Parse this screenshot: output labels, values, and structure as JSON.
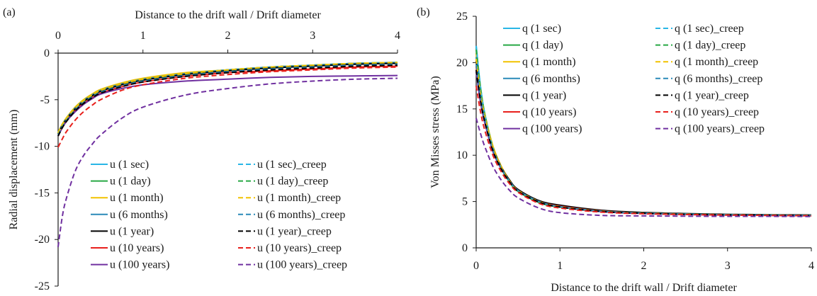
{
  "chart_data": [
    {
      "panel_label": "(a)",
      "type": "line",
      "xlabel": "Distance to the drift wall / Drift diameter",
      "xaxis_position": "top",
      "ylabel": "Radial displacement (mm)",
      "xlim": [
        0,
        4
      ],
      "ylim": [
        -25,
        0
      ],
      "xticks": [
        "0",
        "1",
        "2",
        "3",
        "4"
      ],
      "yticks": [
        "0",
        "-5",
        "-10",
        "-15",
        "-20",
        "-25"
      ],
      "grid": false,
      "legend_position": "bottom-center, two columns",
      "x": [
        0,
        0.05,
        0.1,
        0.2,
        0.3,
        0.4,
        0.5,
        0.75,
        1.0,
        1.5,
        2.0,
        2.5,
        3.0,
        3.5,
        4.0
      ],
      "series": [
        {
          "name": "u (1 sec)",
          "color": "#29b6e6",
          "dash": "solid",
          "values": [
            -8.6,
            -7.7,
            -7.0,
            -5.9,
            -5.1,
            -4.5,
            -4.0,
            -3.3,
            -2.8,
            -2.2,
            -1.8,
            -1.5,
            -1.3,
            -1.1,
            -1.0
          ]
        },
        {
          "name": "u (1 day)",
          "color": "#27a844",
          "dash": "solid",
          "values": [
            -8.6,
            -7.7,
            -7.0,
            -5.9,
            -5.1,
            -4.5,
            -4.0,
            -3.3,
            -2.8,
            -2.2,
            -1.8,
            -1.5,
            -1.3,
            -1.1,
            -1.0
          ]
        },
        {
          "name": "u (1 month)",
          "color": "#f2c200",
          "dash": "solid",
          "values": [
            -8.5,
            -7.6,
            -6.9,
            -5.8,
            -5.0,
            -4.4,
            -3.9,
            -3.2,
            -2.7,
            -2.1,
            -1.8,
            -1.5,
            -1.3,
            -1.1,
            -1.0
          ]
        },
        {
          "name": "u (6 months)",
          "color": "#2a8ab8",
          "dash": "solid",
          "values": [
            -8.6,
            -7.7,
            -7.0,
            -5.9,
            -5.1,
            -4.5,
            -4.0,
            -3.3,
            -2.8,
            -2.2,
            -1.8,
            -1.5,
            -1.3,
            -1.1,
            -1.0
          ]
        },
        {
          "name": "u (1 year)",
          "color": "#000000",
          "dash": "solid",
          "values": [
            -8.7,
            -7.8,
            -7.1,
            -6.0,
            -5.2,
            -4.6,
            -4.1,
            -3.4,
            -2.9,
            -2.3,
            -1.9,
            -1.6,
            -1.4,
            -1.2,
            -1.1
          ]
        },
        {
          "name": "u (10 years)",
          "color": "#e8201c",
          "dash": "solid",
          "values": [
            -8.9,
            -8.0,
            -7.3,
            -6.2,
            -5.4,
            -4.8,
            -4.3,
            -3.6,
            -3.1,
            -2.5,
            -2.1,
            -1.9,
            -1.7,
            -1.5,
            -1.4
          ]
        },
        {
          "name": "u (100 years)",
          "color": "#7030a0",
          "dash": "solid",
          "values": [
            -8.9,
            -8.0,
            -7.3,
            -6.3,
            -5.5,
            -4.9,
            -4.4,
            -3.8,
            -3.4,
            -3.0,
            -2.8,
            -2.6,
            -2.5,
            -2.45,
            -2.4
          ]
        },
        {
          "name": "u (1 sec)_creep",
          "color": "#29b6e6",
          "dash": "dashed",
          "values": [
            -8.6,
            -7.7,
            -7.0,
            -5.9,
            -5.1,
            -4.5,
            -4.0,
            -3.3,
            -2.8,
            -2.2,
            -1.8,
            -1.5,
            -1.3,
            -1.1,
            -1.0
          ]
        },
        {
          "name": "u (1 day)_creep",
          "color": "#27a844",
          "dash": "dashed",
          "values": [
            -8.6,
            -7.7,
            -7.0,
            -5.9,
            -5.1,
            -4.5,
            -4.0,
            -3.3,
            -2.8,
            -2.2,
            -1.8,
            -1.5,
            -1.3,
            -1.1,
            -1.0
          ]
        },
        {
          "name": "u (1 month)_creep",
          "color": "#f2c200",
          "dash": "dashed",
          "values": [
            -8.6,
            -7.7,
            -7.0,
            -5.9,
            -5.1,
            -4.5,
            -4.0,
            -3.3,
            -2.8,
            -2.2,
            -1.8,
            -1.5,
            -1.3,
            -1.1,
            -1.0
          ]
        },
        {
          "name": "u (6 months)_creep",
          "color": "#2a8ab8",
          "dash": "dashed",
          "values": [
            -8.8,
            -7.9,
            -7.2,
            -6.1,
            -5.3,
            -4.7,
            -4.2,
            -3.5,
            -3.0,
            -2.4,
            -2.0,
            -1.7,
            -1.5,
            -1.3,
            -1.2
          ]
        },
        {
          "name": "u (1 year)_creep",
          "color": "#000000",
          "dash": "dashed",
          "values": [
            -8.9,
            -8.0,
            -7.3,
            -6.2,
            -5.4,
            -4.8,
            -4.3,
            -3.6,
            -3.1,
            -2.5,
            -2.1,
            -1.8,
            -1.6,
            -1.4,
            -1.3
          ]
        },
        {
          "name": "u (10 years)_creep",
          "color": "#e8201c",
          "dash": "dashed",
          "values": [
            -10.1,
            -9.2,
            -8.4,
            -7.2,
            -6.3,
            -5.6,
            -5.0,
            -4.0,
            -3.4,
            -2.7,
            -2.3,
            -2.0,
            -1.8,
            -1.6,
            -1.5
          ]
        },
        {
          "name": "u (100 years)_creep",
          "color": "#7030a0",
          "dash": "dashed",
          "values": [
            -20.8,
            -17.5,
            -15.5,
            -12.7,
            -11.0,
            -9.8,
            -8.8,
            -7.0,
            -5.8,
            -4.5,
            -3.8,
            -3.3,
            -3.0,
            -2.8,
            -2.7
          ]
        }
      ]
    },
    {
      "panel_label": "(b)",
      "type": "line",
      "xlabel": "Distance to the drift wall / Drift diameter",
      "xaxis_position": "bottom",
      "ylabel": "Von Misses stress (MPa)",
      "xlim": [
        0,
        4
      ],
      "ylim": [
        0,
        25
      ],
      "xticks": [
        "0",
        "1",
        "2",
        "3",
        "4"
      ],
      "yticks": [
        "25",
        "20",
        "15",
        "10",
        "5",
        "0"
      ],
      "grid": false,
      "legend_position": "top, two columns",
      "x": [
        0,
        0.05,
        0.1,
        0.2,
        0.3,
        0.4,
        0.5,
        0.75,
        1.0,
        1.5,
        2.0,
        2.5,
        3.0,
        3.5,
        4.0
      ],
      "series": [
        {
          "name": "q (1 sec)",
          "color": "#29b6e6",
          "dash": "solid",
          "values": [
            21.8,
            17.5,
            14.6,
            10.8,
            8.6,
            7.1,
            6.1,
            4.9,
            4.4,
            3.95,
            3.75,
            3.65,
            3.58,
            3.54,
            3.5
          ]
        },
        {
          "name": "q (1 day)",
          "color": "#27a844",
          "dash": "solid",
          "values": [
            21.6,
            17.4,
            14.6,
            10.8,
            8.6,
            7.1,
            6.1,
            4.9,
            4.4,
            3.95,
            3.75,
            3.65,
            3.58,
            3.54,
            3.5
          ]
        },
        {
          "name": "q (1 month)",
          "color": "#f2c200",
          "dash": "solid",
          "values": [
            21.0,
            17.2,
            14.6,
            11.0,
            8.8,
            7.3,
            6.2,
            5.0,
            4.4,
            3.95,
            3.75,
            3.65,
            3.58,
            3.54,
            3.5
          ]
        },
        {
          "name": "q (6 months)",
          "color": "#2a8ab8",
          "dash": "solid",
          "values": [
            20.6,
            16.9,
            14.4,
            10.8,
            8.7,
            7.2,
            6.2,
            5.0,
            4.5,
            4.0,
            3.8,
            3.68,
            3.6,
            3.56,
            3.52
          ]
        },
        {
          "name": "q (1 year)",
          "color": "#000000",
          "dash": "solid",
          "values": [
            20.2,
            16.6,
            14.2,
            10.8,
            8.7,
            7.3,
            6.3,
            5.1,
            4.6,
            4.05,
            3.82,
            3.7,
            3.62,
            3.58,
            3.55
          ]
        },
        {
          "name": "q (10 years)",
          "color": "#e8201c",
          "dash": "solid",
          "values": [
            19.6,
            16.2,
            13.9,
            10.6,
            8.6,
            7.2,
            6.2,
            5.0,
            4.5,
            3.98,
            3.76,
            3.65,
            3.58,
            3.54,
            3.5
          ]
        },
        {
          "name": "q (100 years)",
          "color": "#7030a0",
          "dash": "solid",
          "values": [
            19.0,
            15.8,
            13.6,
            10.4,
            8.5,
            7.1,
            6.1,
            4.9,
            4.4,
            3.9,
            3.7,
            3.6,
            3.54,
            3.5,
            3.46
          ]
        },
        {
          "name": "q (1 sec)_creep",
          "color": "#29b6e6",
          "dash": "dashed",
          "values": [
            21.8,
            17.5,
            14.6,
            10.8,
            8.6,
            7.1,
            6.1,
            4.9,
            4.4,
            3.95,
            3.75,
            3.65,
            3.58,
            3.54,
            3.5
          ]
        },
        {
          "name": "q (1 day)_creep",
          "color": "#27a844",
          "dash": "dashed",
          "values": [
            21.4,
            17.3,
            14.5,
            10.8,
            8.6,
            7.1,
            6.1,
            4.9,
            4.4,
            3.95,
            3.75,
            3.65,
            3.58,
            3.54,
            3.5
          ]
        },
        {
          "name": "q (1 month)_creep",
          "color": "#f2c200",
          "dash": "dashed",
          "values": [
            20.4,
            16.8,
            14.3,
            10.8,
            8.7,
            7.2,
            6.2,
            5.0,
            4.45,
            3.95,
            3.75,
            3.65,
            3.58,
            3.54,
            3.5
          ]
        },
        {
          "name": "q (6 months)_creep",
          "color": "#2a8ab8",
          "dash": "dashed",
          "values": [
            19.8,
            16.4,
            14.0,
            10.6,
            8.6,
            7.2,
            6.2,
            5.0,
            4.45,
            3.95,
            3.75,
            3.65,
            3.58,
            3.54,
            3.5
          ]
        },
        {
          "name": "q (1 year)_creep",
          "color": "#000000",
          "dash": "dashed",
          "values": [
            19.2,
            16.0,
            13.7,
            10.5,
            8.5,
            7.1,
            6.1,
            4.95,
            4.4,
            3.92,
            3.72,
            3.62,
            3.56,
            3.52,
            3.48
          ]
        },
        {
          "name": "q (10 years)_creep",
          "color": "#e8201c",
          "dash": "dashed",
          "values": [
            17.5,
            14.8,
            12.8,
            10.0,
            8.2,
            6.9,
            6.0,
            4.8,
            4.3,
            3.85,
            3.68,
            3.6,
            3.54,
            3.5,
            3.46
          ]
        },
        {
          "name": "q (100 years)_creep",
          "color": "#7030a0",
          "dash": "dashed",
          "values": [
            14.0,
            12.4,
            11.0,
            8.8,
            7.3,
            6.2,
            5.4,
            4.3,
            3.8,
            3.5,
            3.45,
            3.42,
            3.4,
            3.4,
            3.38
          ]
        }
      ]
    }
  ]
}
